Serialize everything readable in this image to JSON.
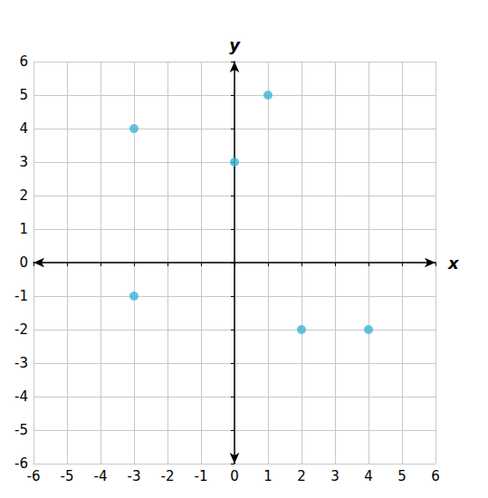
{
  "chart_data": {
    "type": "scatter",
    "x": [
      -3,
      1,
      0,
      -3,
      2,
      4
    ],
    "values": [
      4,
      5,
      3,
      -1,
      -2,
      -2
    ],
    "color": "#3cb4d7",
    "xlabel": "x",
    "ylabel": "y",
    "xlim": [
      -6,
      6
    ],
    "ylim": [
      -6,
      6
    ],
    "xticks": [
      -6,
      -5,
      -4,
      -3,
      -2,
      -1,
      0,
      1,
      2,
      3,
      4,
      5,
      6
    ],
    "yticks": [
      -6,
      -5,
      -4,
      -3,
      -2,
      -1,
      0,
      1,
      2,
      3,
      4,
      5,
      6
    ],
    "grid": true
  }
}
